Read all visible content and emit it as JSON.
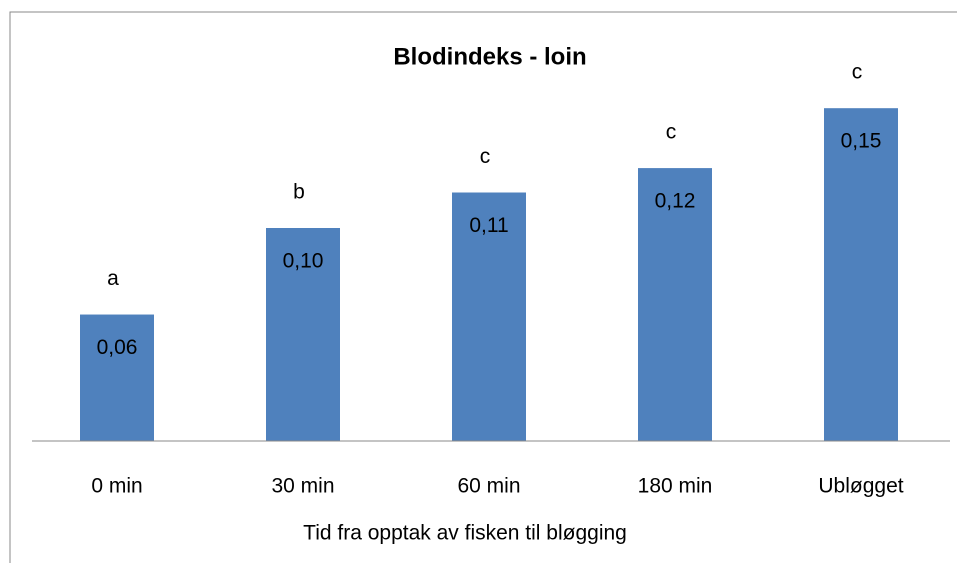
{
  "chart_data": {
    "type": "bar",
    "title": "Blodindeks - loin",
    "x_label": "Tid  fra opptak av fisken til bløgging",
    "categories": [
      "0 min",
      "30 min",
      "60 min",
      "180 min",
      "Ubløgget"
    ],
    "values": [
      0.057,
      0.096,
      0.112,
      0.123,
      0.15
    ],
    "value_labels": [
      "0,06",
      "0,10",
      "0,11",
      "0,12",
      "0,15"
    ],
    "annotations": [
      "a",
      "b",
      "c",
      "c",
      "c"
    ],
    "color": "#4f81bd",
    "ylim": [
      0,
      0.16
    ]
  }
}
